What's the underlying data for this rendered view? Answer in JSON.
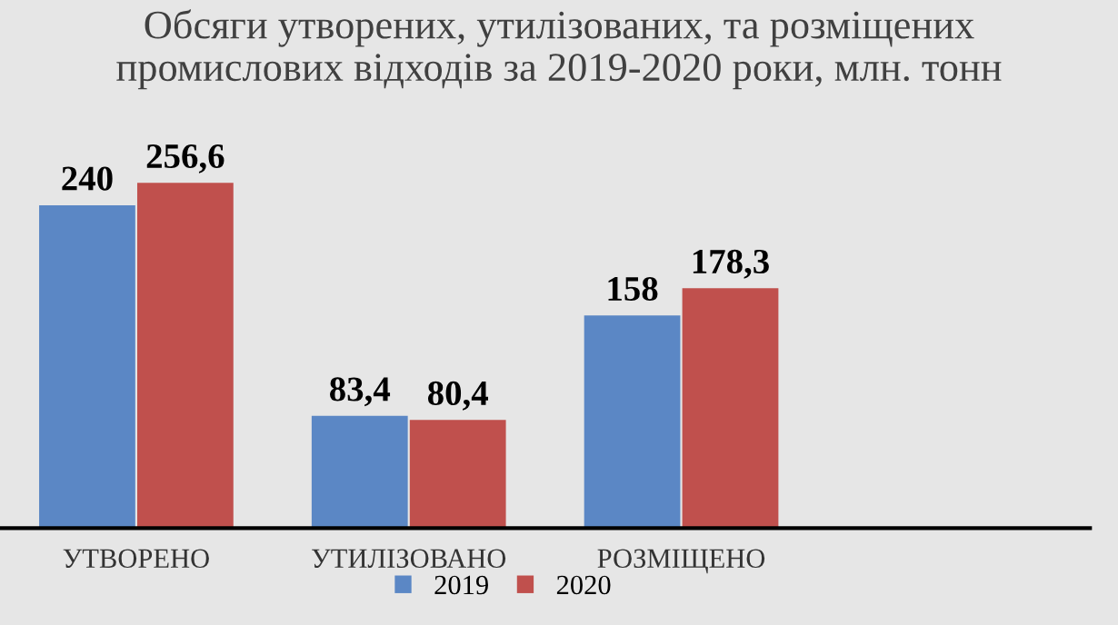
{
  "chart_data": {
    "type": "bar",
    "title": "Обсяги утворених, утилізованих, та розміщених\nпромислових відходів за 2019-2020 роки, млн. тонн",
    "categories": [
      "УТВОРЕНО",
      "УТИЛІЗОВАНО",
      "РОЗМІЩЕНО",
      null
    ],
    "series": [
      {
        "name": "2019",
        "color": "#5b87c5",
        "values": [
          240,
          83.4,
          158,
          null
        ],
        "value_labels": [
          "240",
          "83,4",
          "158",
          null
        ]
      },
      {
        "name": "2020",
        "color": "#c0504d",
        "values": [
          256.6,
          80.4,
          178.3,
          null
        ],
        "value_labels": [
          "256,6",
          "80,4",
          "178,3",
          null
        ]
      }
    ],
    "grid": false,
    "legend": "bottom"
  }
}
